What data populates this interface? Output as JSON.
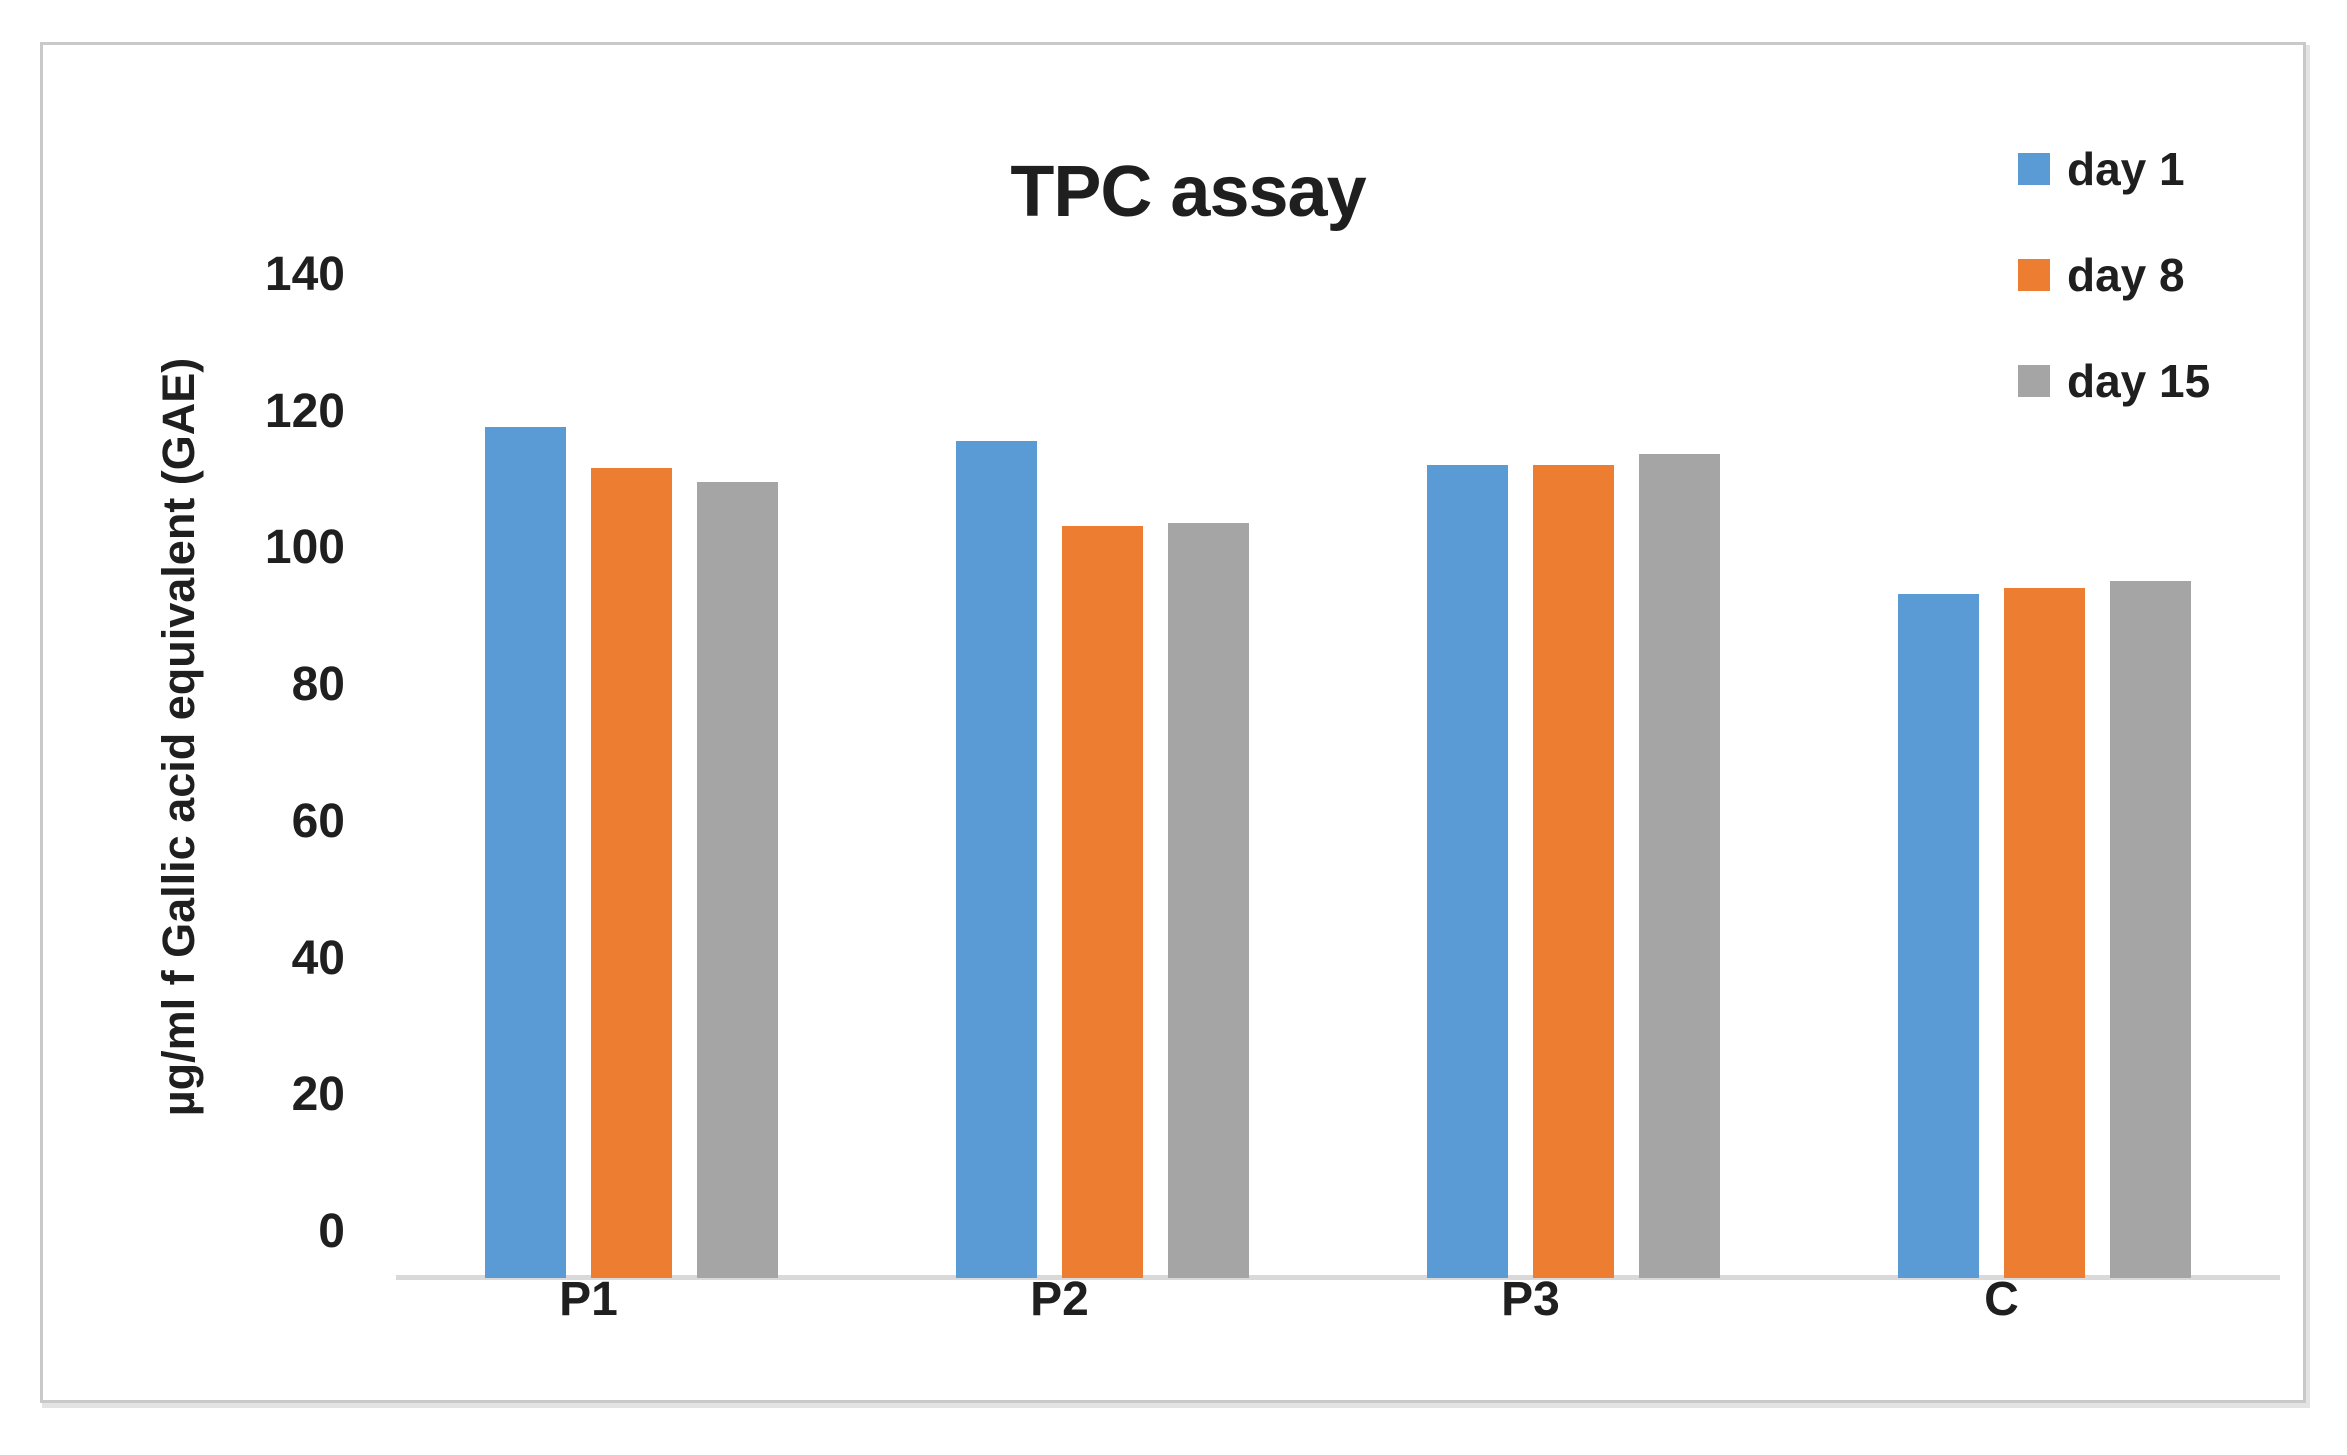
{
  "chart_data": {
    "type": "bar",
    "title": "TPC assay",
    "categories": [
      "P1",
      "P2",
      "P3",
      "C"
    ],
    "series": [
      {
        "name": "day 1",
        "color": "#5B9BD5",
        "values": [
          124.5,
          122.5,
          119.0,
          100.0
        ]
      },
      {
        "name": "day 8",
        "color": "#ED7D31",
        "values": [
          118.5,
          110.0,
          119.0,
          101.0
        ]
      },
      {
        "name": "day 15",
        "color": "#A5A5A5",
        "values": [
          116.5,
          110.5,
          120.5,
          102.0
        ]
      }
    ],
    "xlabel": "",
    "ylabel": "µg/ml f Gallic acid equivalent (GAE)",
    "ylim": [
      0,
      140
    ],
    "ytick_step": 20,
    "ytick_labels": [
      "0",
      "20",
      "40",
      "60",
      "80",
      "100",
      "120",
      "140"
    ],
    "grid": false,
    "legend_position": "top-right",
    "axis_line_color": "#D9D9D9",
    "text_color": "#1f1f1f"
  }
}
